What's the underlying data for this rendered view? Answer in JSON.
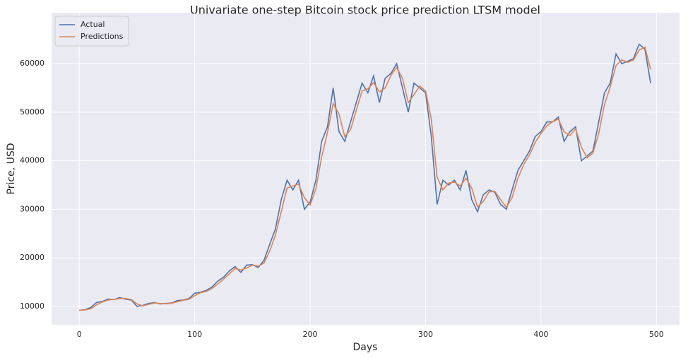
{
  "chart_data": {
    "type": "line",
    "title": "Univariate one-step Bitcoin stock price prediction LTSM model",
    "x_label": "Days",
    "y_label": "Price, USD",
    "x": [
      0,
      5,
      10,
      15,
      20,
      25,
      30,
      35,
      40,
      45,
      50,
      55,
      60,
      65,
      70,
      75,
      80,
      85,
      90,
      95,
      100,
      105,
      110,
      115,
      120,
      125,
      130,
      135,
      140,
      145,
      150,
      155,
      160,
      165,
      170,
      175,
      180,
      185,
      190,
      195,
      200,
      205,
      210,
      215,
      220,
      225,
      230,
      235,
      240,
      245,
      250,
      255,
      260,
      265,
      270,
      275,
      280,
      285,
      290,
      295,
      300,
      305,
      310,
      315,
      320,
      325,
      330,
      335,
      340,
      345,
      350,
      355,
      360,
      365,
      370,
      375,
      380,
      385,
      390,
      395,
      400,
      405,
      410,
      415,
      420,
      425,
      430,
      435,
      440,
      445,
      450,
      455,
      460,
      465,
      470,
      475,
      480,
      485,
      490,
      495
    ],
    "series": [
      {
        "name": "Actual",
        "color": "#4c72b0",
        "values": [
          9200,
          9300,
          9800,
          10800,
          11000,
          11500,
          11400,
          11800,
          11500,
          11300,
          10000,
          10200,
          10600,
          10800,
          10500,
          10600,
          10700,
          11200,
          11300,
          11600,
          12700,
          12900,
          13300,
          14000,
          15200,
          16000,
          17300,
          18200,
          17000,
          18500,
          18600,
          18000,
          19500,
          22800,
          26000,
          32000,
          36000,
          34000,
          36000,
          30000,
          31500,
          36000,
          44000,
          47000,
          55000,
          46000,
          44000,
          48000,
          52000,
          56000,
          54000,
          57500,
          52000,
          57000,
          58000,
          60000,
          55000,
          50000,
          56000,
          55000,
          54000,
          45000,
          31000,
          36000,
          35000,
          36000,
          34000,
          38000,
          32000,
          29500,
          33000,
          34000,
          33500,
          31000,
          30000,
          34000,
          38000,
          40000,
          42000,
          45000,
          46000,
          48000,
          48000,
          49000,
          44000,
          46000,
          47000,
          40000,
          41000,
          42000,
          48000,
          54000,
          56000,
          62000,
          60000,
          60500,
          61000,
          64000,
          63000,
          56000
        ]
      },
      {
        "name": "Predictions",
        "color": "#dd8452",
        "values": [
          9200,
          9250,
          9500,
          10300,
          10900,
          11300,
          11450,
          11600,
          11650,
          11400,
          10500,
          10100,
          10400,
          10700,
          10600,
          10550,
          10650,
          10950,
          11250,
          11450,
          12200,
          12800,
          13100,
          13700,
          14600,
          15600,
          16700,
          17800,
          17500,
          17900,
          18500,
          18300,
          18900,
          21400,
          24700,
          29500,
          34400,
          34800,
          35200,
          32400,
          30900,
          34200,
          40800,
          45800,
          51800,
          49600,
          45000,
          46400,
          50400,
          54400,
          54800,
          56100,
          54200,
          55000,
          57600,
          59200,
          57000,
          52000,
          53600,
          55400,
          54400,
          48600,
          36600,
          34000,
          35400,
          35600,
          34800,
          36400,
          34400,
          30500,
          31600,
          33600,
          33700,
          32000,
          30400,
          32400,
          36400,
          39200,
          41200,
          43800,
          45600,
          47200,
          48000,
          48600,
          46000,
          45200,
          46600,
          42800,
          40600,
          41600,
          45600,
          51600,
          55200,
          59600,
          60800,
          60300,
          60700,
          62800,
          63400,
          58800
        ]
      }
    ],
    "xlim": [
      -24,
      520
    ],
    "ylim": [
      6200,
      70500
    ],
    "xticks": [
      0,
      100,
      200,
      300,
      400,
      500
    ],
    "yticks": [
      10000,
      20000,
      30000,
      40000,
      50000,
      60000
    ],
    "grid": true,
    "legend": "upper left"
  }
}
